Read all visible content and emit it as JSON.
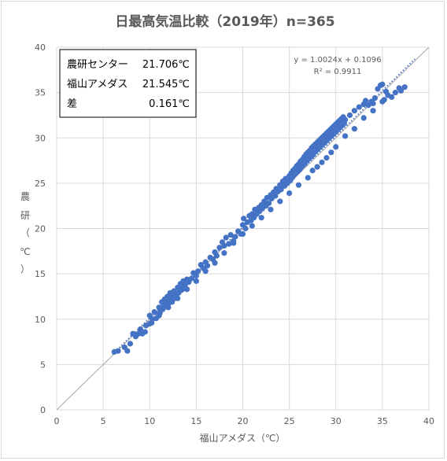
{
  "chart_data": {
    "type": "scatter",
    "title": "日最高気温比較（2019年）n=365",
    "xlabel": "福山アメダス（℃）",
    "ylabel_chars": [
      "農",
      "研",
      "（",
      "℃",
      "）"
    ],
    "xlim": [
      0,
      40
    ],
    "ylim": [
      0,
      40
    ],
    "x_ticks": [
      "0",
      "5",
      "10",
      "15",
      "20",
      "25",
      "30",
      "35",
      "40"
    ],
    "y_ticks": [
      "0",
      "5",
      "10",
      "15",
      "20",
      "25",
      "30",
      "35",
      "40"
    ],
    "grid": true,
    "legend": "none",
    "point_color": "#4472C4",
    "trendline": {
      "slope": 1.0024,
      "intercept": 0.1096,
      "equation": "y = 1.0024x + 0.1096",
      "r2_label": "R² = 0.9911",
      "color": "#4472C4"
    },
    "reference_line": {
      "from": [
        0,
        0
      ],
      "to": [
        40,
        40
      ],
      "color": "#a6a6a6"
    },
    "stats_box": [
      {
        "label": "農研センター",
        "value": "21.706℃"
      },
      {
        "label": "福山アメダス",
        "value": "21.545℃"
      },
      {
        "label": "差",
        "value": "0.161℃"
      }
    ],
    "points": [
      [
        6.2,
        6.4
      ],
      [
        6.6,
        6.5
      ],
      [
        7.3,
        6.9
      ],
      [
        7.6,
        6.5
      ],
      [
        7.9,
        7.3
      ],
      [
        8.2,
        8.4
      ],
      [
        8.5,
        8.1
      ],
      [
        8.8,
        8.4
      ],
      [
        9.0,
        8.9
      ],
      [
        9.2,
        8.4
      ],
      [
        9.5,
        8.6
      ],
      [
        9.6,
        9.3
      ],
      [
        10.0,
        10.4
      ],
      [
        10.2,
        9.6
      ],
      [
        10.3,
        10.0
      ],
      [
        10.5,
        10.8
      ],
      [
        10.7,
        10.1
      ],
      [
        10.9,
        10.6
      ],
      [
        11.0,
        11.3
      ],
      [
        11.1,
        10.7
      ],
      [
        11.3,
        11.9
      ],
      [
        11.4,
        11.1
      ],
      [
        11.5,
        11.6
      ],
      [
        11.6,
        12.2
      ],
      [
        11.7,
        11.4
      ],
      [
        11.8,
        11.8
      ],
      [
        11.9,
        12.5
      ],
      [
        12.0,
        11.7
      ],
      [
        12.1,
        12.1
      ],
      [
        12.2,
        12.9
      ],
      [
        12.3,
        12.4
      ],
      [
        12.4,
        11.9
      ],
      [
        12.5,
        12.7
      ],
      [
        12.6,
        13.1
      ],
      [
        12.7,
        12.3
      ],
      [
        12.8,
        12.6
      ],
      [
        12.9,
        12.8
      ],
      [
        13.0,
        13.5
      ],
      [
        13.1,
        12.9
      ],
      [
        13.2,
        13.3
      ],
      [
        13.3,
        13.9
      ],
      [
        13.4,
        13.2
      ],
      [
        13.5,
        13.6
      ],
      [
        13.6,
        14.2
      ],
      [
        13.7,
        13.4
      ],
      [
        13.8,
        13.8
      ],
      [
        14.0,
        14.4
      ],
      [
        14.2,
        14.1
      ],
      [
        14.5,
        14.5
      ],
      [
        14.7,
        15.1
      ],
      [
        15.0,
        14.8
      ],
      [
        15.2,
        15.3
      ],
      [
        15.5,
        16.0
      ],
      [
        15.8,
        15.6
      ],
      [
        16.0,
        16.3
      ],
      [
        16.2,
        15.9
      ],
      [
        16.5,
        16.8
      ],
      [
        16.8,
        16.6
      ],
      [
        17.0,
        17.4
      ],
      [
        17.2,
        17.0
      ],
      [
        17.5,
        17.9
      ],
      [
        17.8,
        18.5
      ],
      [
        18.0,
        18.1
      ],
      [
        18.2,
        19.0
      ],
      [
        18.5,
        18.3
      ],
      [
        18.7,
        19.3
      ],
      [
        19.0,
        18.6
      ],
      [
        19.2,
        19.1
      ],
      [
        19.5,
        19.7
      ],
      [
        19.8,
        19.4
      ],
      [
        20.0,
        20.4
      ],
      [
        20.1,
        21.1
      ],
      [
        20.3,
        20.0
      ],
      [
        20.5,
        20.7
      ],
      [
        20.7,
        21.4
      ],
      [
        20.9,
        20.9
      ],
      [
        21.0,
        21.6
      ],
      [
        21.2,
        21.2
      ],
      [
        21.3,
        22.1
      ],
      [
        21.5,
        21.6
      ],
      [
        21.7,
        22.3
      ],
      [
        21.8,
        21.9
      ],
      [
        22.0,
        22.6
      ],
      [
        22.1,
        22.2
      ],
      [
        22.3,
        23.0
      ],
      [
        22.5,
        22.5
      ],
      [
        22.6,
        23.4
      ],
      [
        22.8,
        22.8
      ],
      [
        23.0,
        23.7
      ],
      [
        23.1,
        23.3
      ],
      [
        23.3,
        24.0
      ],
      [
        23.5,
        23.6
      ],
      [
        23.6,
        24.4
      ],
      [
        23.8,
        24.1
      ],
      [
        24.0,
        24.8
      ],
      [
        24.1,
        24.3
      ],
      [
        24.3,
        25.2
      ],
      [
        24.5,
        24.7
      ],
      [
        24.6,
        25.5
      ],
      [
        24.8,
        25.0
      ],
      [
        25.0,
        25.8
      ],
      [
        25.1,
        25.3
      ],
      [
        25.2,
        26.1
      ],
      [
        25.3,
        25.6
      ],
      [
        25.4,
        26.4
      ],
      [
        25.5,
        25.9
      ],
      [
        25.6,
        26.6
      ],
      [
        25.7,
        26.1
      ],
      [
        25.8,
        26.9
      ],
      [
        25.9,
        26.3
      ],
      [
        26.0,
        27.1
      ],
      [
        26.1,
        26.5
      ],
      [
        26.2,
        27.4
      ],
      [
        26.3,
        26.8
      ],
      [
        26.4,
        27.6
      ],
      [
        26.5,
        27.0
      ],
      [
        26.6,
        27.9
      ],
      [
        26.7,
        27.2
      ],
      [
        26.8,
        28.2
      ],
      [
        26.9,
        27.5
      ],
      [
        27.0,
        28.4
      ],
      [
        27.1,
        27.7
      ],
      [
        27.2,
        28.6
      ],
      [
        27.3,
        27.9
      ],
      [
        27.4,
        28.9
      ],
      [
        27.5,
        28.1
      ],
      [
        27.6,
        29.1
      ],
      [
        27.7,
        28.4
      ],
      [
        27.8,
        29.3
      ],
      [
        27.9,
        28.6
      ],
      [
        28.0,
        29.5
      ],
      [
        28.1,
        28.8
      ],
      [
        28.2,
        29.7
      ],
      [
        28.3,
        29.0
      ],
      [
        28.4,
        29.9
      ],
      [
        28.5,
        29.2
      ],
      [
        28.6,
        30.1
      ],
      [
        28.7,
        29.4
      ],
      [
        28.8,
        30.3
      ],
      [
        28.9,
        29.6
      ],
      [
        29.0,
        30.5
      ],
      [
        29.1,
        29.8
      ],
      [
        29.2,
        30.7
      ],
      [
        29.3,
        30.0
      ],
      [
        29.4,
        30.9
      ],
      [
        29.5,
        30.2
      ],
      [
        29.6,
        31.1
      ],
      [
        29.7,
        30.4
      ],
      [
        29.8,
        31.3
      ],
      [
        29.9,
        30.6
      ],
      [
        30.0,
        31.5
      ],
      [
        30.1,
        30.8
      ],
      [
        30.2,
        31.7
      ],
      [
        30.3,
        31.0
      ],
      [
        30.4,
        31.9
      ],
      [
        30.5,
        31.2
      ],
      [
        30.6,
        32.1
      ],
      [
        30.7,
        31.4
      ],
      [
        30.8,
        32.3
      ],
      [
        30.9,
        31.6
      ],
      [
        31.0,
        32.0
      ],
      [
        31.5,
        32.5
      ],
      [
        32.0,
        33.0
      ],
      [
        32.5,
        33.4
      ],
      [
        33.0,
        33.7
      ],
      [
        33.2,
        34.1
      ],
      [
        33.5,
        33.6
      ],
      [
        33.8,
        34.0
      ],
      [
        34.0,
        33.8
      ],
      [
        34.2,
        34.4
      ],
      [
        34.5,
        35.4
      ],
      [
        34.8,
        35.8
      ],
      [
        35.0,
        35.9
      ],
      [
        35.2,
        34.2
      ],
      [
        35.4,
        35.1
      ],
      [
        35.6,
        34.7
      ],
      [
        36.0,
        34.5
      ],
      [
        36.4,
        35.0
      ],
      [
        36.8,
        35.5
      ],
      [
        37.0,
        35.2
      ],
      [
        37.4,
        35.6
      ],
      [
        27.0,
        25.6
      ],
      [
        28.0,
        26.8
      ],
      [
        29.0,
        27.8
      ],
      [
        30.0,
        29.0
      ],
      [
        26.0,
        24.8
      ],
      [
        25.0,
        23.9
      ],
      [
        24.0,
        23.0
      ],
      [
        23.0,
        22.1
      ],
      [
        22.0,
        21.2
      ],
      [
        21.0,
        20.3
      ],
      [
        20.0,
        19.4
      ],
      [
        19.0,
        18.4
      ],
      [
        18.0,
        17.3
      ],
      [
        17.0,
        16.2
      ],
      [
        16.0,
        15.3
      ],
      [
        15.0,
        14.2
      ],
      [
        14.0,
        13.3
      ],
      [
        13.0,
        12.3
      ],
      [
        12.0,
        11.3
      ],
      [
        11.0,
        10.4
      ],
      [
        10.0,
        9.5
      ],
      [
        31.0,
        30.2
      ],
      [
        32.0,
        31.0
      ],
      [
        33.0,
        32.2
      ],
      [
        34.0,
        33.0
      ],
      [
        35.0,
        34.0
      ],
      [
        29.5,
        28.4
      ],
      [
        28.5,
        27.3
      ],
      [
        27.5,
        26.4
      ]
    ]
  }
}
